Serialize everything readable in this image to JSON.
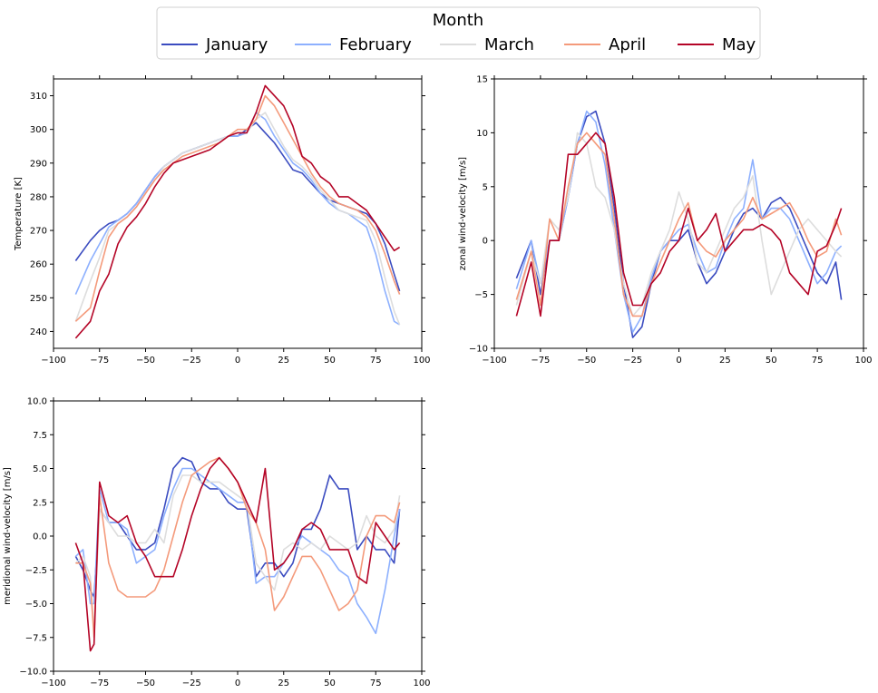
{
  "legend": {
    "title": "Month",
    "entries": [
      {
        "label": "January",
        "color": "#3b4cc0"
      },
      {
        "label": "February",
        "color": "#8db0fe"
      },
      {
        "label": "March",
        "color": "#dddddd"
      },
      {
        "label": "April",
        "color": "#f49a7b"
      },
      {
        "label": "May",
        "color": "#b40426"
      }
    ],
    "placement": "top-center"
  },
  "chart_data": [
    {
      "type": "line",
      "xlabel": "",
      "ylabel": "Temperature [K]",
      "xlim": [
        -100,
        100
      ],
      "ylim": [
        235,
        315
      ],
      "xticks": [
        -100,
        -75,
        -50,
        -25,
        0,
        25,
        50,
        75,
        100
      ],
      "yticks": [
        240,
        250,
        260,
        270,
        280,
        290,
        300,
        310
      ],
      "xtick_labels": [
        "−100",
        "−75",
        "−50",
        "−25",
        "0",
        "25",
        "50",
        "75",
        "100"
      ],
      "ytick_labels": [
        "240",
        "250",
        "260",
        "270",
        "280",
        "290",
        "300",
        "310"
      ],
      "x": [
        -88,
        -80,
        -75,
        -70,
        -65,
        -60,
        -55,
        -50,
        -45,
        -40,
        -35,
        -30,
        -25,
        -20,
        -15,
        -10,
        -5,
        0,
        5,
        10,
        15,
        20,
        25,
        30,
        35,
        40,
        45,
        50,
        55,
        60,
        65,
        70,
        75,
        80,
        85,
        88
      ],
      "series": [
        {
          "name": "January",
          "values": [
            261,
            267,
            270,
            272,
            273,
            275,
            278,
            282,
            286,
            289,
            291,
            293,
            294,
            295,
            296,
            297,
            298,
            298,
            300,
            302,
            299,
            296,
            292,
            288,
            287,
            284,
            281,
            279,
            278,
            277,
            276,
            275,
            272,
            266,
            257,
            252
          ]
        },
        {
          "name": "February",
          "values": [
            251,
            261,
            266,
            271,
            273,
            275,
            278,
            282,
            286,
            289,
            291,
            293,
            294,
            295,
            296,
            297,
            298,
            298,
            299,
            305,
            303,
            298,
            294,
            290,
            288,
            285,
            281,
            278,
            276,
            275,
            273,
            271,
            263,
            252,
            243,
            242
          ]
        },
        {
          "name": "March",
          "values": [
            243,
            255,
            262,
            270,
            272,
            274,
            277,
            281,
            285,
            289,
            291,
            293,
            294,
            295,
            296,
            297,
            298,
            299,
            299,
            303,
            305,
            300,
            295,
            291,
            289,
            286,
            282,
            279,
            276,
            275,
            274,
            273,
            267,
            256,
            246,
            242
          ]
        },
        {
          "name": "April",
          "values": [
            243,
            247,
            258,
            268,
            272,
            274,
            277,
            281,
            285,
            288,
            290,
            292,
            293,
            294,
            295,
            296,
            298,
            300,
            300,
            303,
            310,
            307,
            302,
            297,
            292,
            287,
            283,
            280,
            278,
            277,
            276,
            274,
            270,
            263,
            255,
            251
          ]
        },
        {
          "name": "May",
          "values": [
            238,
            243,
            252,
            257,
            266,
            271,
            274,
            278,
            283,
            287,
            290,
            291,
            292,
            293,
            294,
            296,
            298,
            299,
            299,
            305,
            313,
            310,
            307,
            301,
            292,
            290,
            286,
            284,
            280,
            280,
            278,
            276,
            272,
            268,
            264,
            265
          ]
        }
      ]
    },
    {
      "type": "line",
      "xlabel": "",
      "ylabel": "zonal wind-velocity [m/s]",
      "xlim": [
        -100,
        100
      ],
      "ylim": [
        -10,
        15
      ],
      "xticks": [
        -100,
        -75,
        -50,
        -25,
        0,
        25,
        50,
        75,
        100
      ],
      "yticks": [
        -10,
        -5,
        0,
        5,
        10,
        15
      ],
      "xtick_labels": [
        "−100",
        "−75",
        "−50",
        "−25",
        "0",
        "25",
        "50",
        "75",
        "100"
      ],
      "ytick_labels": [
        "−10",
        "−5",
        "0",
        "5",
        "10",
        "15"
      ],
      "x": [
        -88,
        -80,
        -75,
        -70,
        -65,
        -60,
        -55,
        -50,
        -45,
        -40,
        -35,
        -30,
        -25,
        -20,
        -15,
        -10,
        -5,
        0,
        5,
        10,
        15,
        20,
        25,
        30,
        35,
        40,
        45,
        50,
        55,
        60,
        65,
        70,
        75,
        80,
        85,
        88
      ],
      "series": [
        {
          "name": "January",
          "values": [
            -3.5,
            0,
            -5,
            0,
            0,
            4,
            9,
            11.5,
            12,
            9,
            3,
            -4,
            -9,
            -8,
            -4,
            -1,
            0,
            0,
            1,
            -2,
            -4,
            -3,
            -1,
            1,
            2.5,
            3,
            2,
            3.5,
            4,
            3,
            1,
            -1,
            -3,
            -4,
            -2,
            -5.5
          ]
        },
        {
          "name": "February",
          "values": [
            -4.5,
            0,
            -4,
            0,
            0,
            4,
            9,
            12,
            11,
            7,
            1,
            -5,
            -8.5,
            -7,
            -3.5,
            -1,
            0,
            1,
            1.5,
            -1,
            -3,
            -2.5,
            0,
            2,
            3,
            7.5,
            2,
            3,
            3,
            2,
            0,
            -2,
            -4,
            -3,
            -1,
            -0.5
          ]
        },
        {
          "name": "March",
          "values": [
            -6,
            -1,
            -4,
            2,
            1,
            4,
            10,
            9,
            5,
            4,
            1,
            -4,
            -7,
            -6,
            -3,
            -1,
            1,
            4.5,
            2,
            -2,
            -3,
            -1,
            1,
            3,
            4,
            6,
            0,
            -5,
            -3,
            -1,
            1,
            2,
            1,
            0,
            -1,
            -1.5
          ]
        },
        {
          "name": "April",
          "values": [
            -5.5,
            -1,
            -6,
            2,
            0,
            5,
            9,
            10,
            9,
            8,
            2,
            -5,
            -7,
            -7,
            -4,
            -2,
            0,
            2,
            3.5,
            0,
            -1,
            -1.5,
            0,
            1,
            2,
            4,
            2,
            2.5,
            3,
            3.5,
            2,
            0,
            -1.5,
            -1,
            2,
            0.5
          ]
        },
        {
          "name": "May",
          "values": [
            -7,
            -2,
            -7,
            0,
            0,
            8,
            8,
            9,
            10,
            9,
            4,
            -3,
            -6,
            -6,
            -4,
            -3,
            -1,
            0,
            3,
            0,
            1,
            2.5,
            -1,
            0,
            1,
            1,
            1.5,
            1,
            0,
            -3,
            -4,
            -5,
            -1,
            -0.5,
            1.5,
            3
          ]
        }
      ]
    },
    {
      "type": "line",
      "xlabel": "",
      "ylabel": "meridional wind-velocity [m/s]",
      "xlim": [
        -100,
        100
      ],
      "ylim": [
        -10,
        10
      ],
      "xticks": [
        -100,
        -75,
        -50,
        -25,
        0,
        25,
        50,
        75,
        100
      ],
      "yticks": [
        -10,
        -7.5,
        -5,
        -2.5,
        0,
        2.5,
        5,
        7.5,
        10
      ],
      "xtick_labels": [
        "−100",
        "−75",
        "−50",
        "−25",
        "0",
        "25",
        "50",
        "75",
        "100"
      ],
      "ytick_labels": [
        "−10.0",
        "−7.5",
        "−5.0",
        "−2.5",
        "0.0",
        "2.5",
        "5.0",
        "7.5",
        "10.0"
      ],
      "x": [
        -88,
        -84,
        -80,
        -78,
        -75,
        -70,
        -65,
        -60,
        -55,
        -50,
        -45,
        -40,
        -35,
        -30,
        -25,
        -20,
        -15,
        -10,
        -5,
        0,
        5,
        10,
        15,
        20,
        25,
        30,
        35,
        40,
        45,
        50,
        55,
        60,
        65,
        70,
        75,
        80,
        85,
        88
      ],
      "series": [
        {
          "name": "January",
          "values": [
            -1.5,
            -2.5,
            -4,
            -4.5,
            2,
            1,
            1,
            0,
            -1,
            -1,
            -0.5,
            2,
            5,
            5.8,
            5.5,
            4,
            3.5,
            3.5,
            2.5,
            2,
            2,
            -3,
            -2,
            -2,
            -3,
            -2,
            0.5,
            0.5,
            2,
            4.5,
            3.5,
            3.5,
            -1,
            0,
            -1,
            -1,
            -2,
            2
          ]
        },
        {
          "name": "February",
          "values": [
            -1.5,
            -1,
            -5,
            -5,
            3.5,
            1,
            1,
            0.5,
            -2,
            -1.5,
            -1,
            1.5,
            3.5,
            5,
            5,
            4.5,
            4,
            3.5,
            3,
            2.5,
            2.5,
            -3.5,
            -3,
            -3,
            -2,
            -1,
            0,
            -0.5,
            -1,
            -1.5,
            -2.5,
            -3,
            -5,
            -6,
            -7.2,
            -4,
            0,
            2
          ]
        },
        {
          "name": "March",
          "values": [
            -2,
            -1.5,
            -3,
            -7,
            2,
            1,
            0,
            0,
            -0.5,
            -0.5,
            0.5,
            -0.5,
            3,
            4.5,
            4.5,
            4,
            4,
            4,
            3.5,
            3,
            2.5,
            -2,
            -3,
            -4,
            -1,
            -0.5,
            -1,
            -0.5,
            -1,
            0,
            -0.5,
            -1,
            -0.5,
            1.5,
            0,
            -0.5,
            0.5,
            3
          ]
        },
        {
          "name": "April",
          "values": [
            -2,
            -2,
            -3.5,
            -7.5,
            3,
            -2,
            -4,
            -4.5,
            -4.5,
            -4.5,
            -4,
            -2.5,
            0,
            2.5,
            4.5,
            5,
            5.5,
            5.8,
            5,
            4,
            2,
            1,
            -1,
            -5.5,
            -4.5,
            -3,
            -1.5,
            -1.5,
            -2.5,
            -4,
            -5.5,
            -5,
            -4,
            0,
            1.5,
            1.5,
            1,
            2.5
          ]
        },
        {
          "name": "May",
          "values": [
            -0.5,
            -2,
            -8.5,
            -8,
            4,
            1.5,
            1,
            1.5,
            -0.5,
            -1.5,
            -3,
            -3,
            -3,
            -1,
            1.5,
            3.5,
            5,
            5.8,
            5,
            4,
            2.5,
            1,
            5,
            -2.5,
            -2,
            -1,
            0.5,
            1,
            0.5,
            -1,
            -1,
            -1,
            -3,
            -3.5,
            1,
            0,
            -1,
            -0.5
          ]
        }
      ]
    }
  ]
}
